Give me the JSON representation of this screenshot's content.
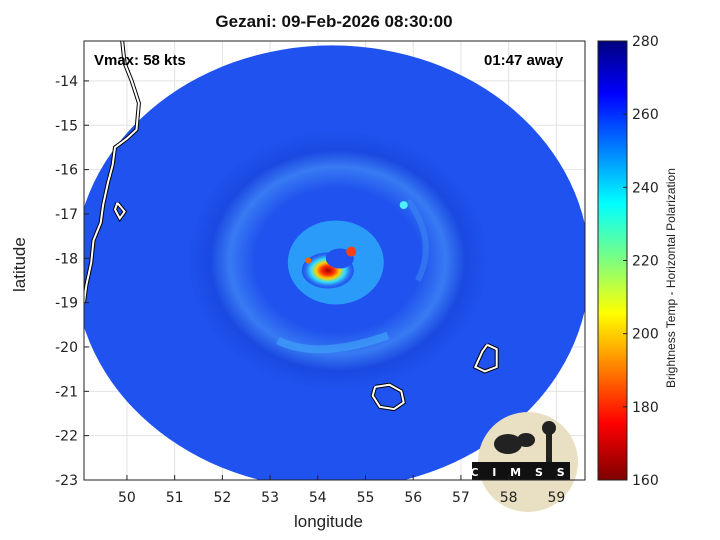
{
  "figure": {
    "title": "Gezani: 09-Feb-2026 08:30:00",
    "vmax_text": "Vmax: 58 kts",
    "time_away_text": "01:47 away",
    "xlabel": "longitude",
    "ylabel": "latitude",
    "colorbar_label": "Brightness Temp - Horizontal Polarization",
    "logo_text": "CIMSS"
  },
  "axes": {
    "x_ticks": [
      50,
      51,
      52,
      53,
      54,
      55,
      56,
      57,
      58,
      59
    ],
    "y_ticks": [
      -14,
      -15,
      -16,
      -17,
      -18,
      -19,
      -20,
      -21,
      -22,
      -23
    ],
    "xlim": [
      49.1,
      59.6
    ],
    "ylim": [
      -23,
      -13.1
    ],
    "grid": true
  },
  "colorbar": {
    "ticks": [
      280,
      260,
      240,
      220,
      200,
      180,
      160
    ],
    "range": [
      160,
      280
    ],
    "colormap": "jet"
  },
  "colors": {
    "background_field": "#1f52ee",
    "eye_core": "#c01010",
    "coastline": "#ffffff",
    "frame": "#000000"
  },
  "swath": {
    "center_lon": 54.3,
    "center_lat": -18.2,
    "radius_deg_lon": 5.4,
    "radius_deg_lat": 5.0
  },
  "storm": {
    "eye_lon": 54.0,
    "eye_lat": -18.5
  },
  "coastlines": [
    {
      "name": "madagascar-east-coast",
      "points": [
        [
          49.9,
          -13.1
        ],
        [
          49.95,
          -13.6
        ],
        [
          50.1,
          -14.0
        ],
        [
          50.25,
          -14.5
        ],
        [
          50.2,
          -15.1
        ],
        [
          50.0,
          -15.3
        ],
        [
          49.75,
          -15.5
        ],
        [
          49.7,
          -15.9
        ],
        [
          49.6,
          -16.3
        ],
        [
          49.5,
          -16.8
        ],
        [
          49.45,
          -17.2
        ],
        [
          49.3,
          -17.6
        ],
        [
          49.25,
          -18.1
        ],
        [
          49.15,
          -18.6
        ],
        [
          49.1,
          -19.0
        ]
      ]
    },
    {
      "name": "reunion-island",
      "points": [
        [
          55.2,
          -20.9
        ],
        [
          55.5,
          -20.85
        ],
        [
          55.75,
          -21.0
        ],
        [
          55.8,
          -21.25
        ],
        [
          55.6,
          -21.4
        ],
        [
          55.3,
          -21.35
        ],
        [
          55.15,
          -21.1
        ],
        [
          55.2,
          -20.9
        ]
      ]
    },
    {
      "name": "mauritius-island",
      "points": [
        [
          57.55,
          -19.95
        ],
        [
          57.75,
          -20.05
        ],
        [
          57.75,
          -20.45
        ],
        [
          57.5,
          -20.55
        ],
        [
          57.3,
          -20.45
        ],
        [
          57.45,
          -20.1
        ],
        [
          57.55,
          -19.95
        ]
      ]
    },
    {
      "name": "ile-sainte-marie",
      "points": [
        [
          49.8,
          -16.75
        ],
        [
          49.95,
          -16.95
        ],
        [
          49.85,
          -17.1
        ],
        [
          49.75,
          -16.9
        ],
        [
          49.8,
          -16.75
        ]
      ]
    }
  ]
}
